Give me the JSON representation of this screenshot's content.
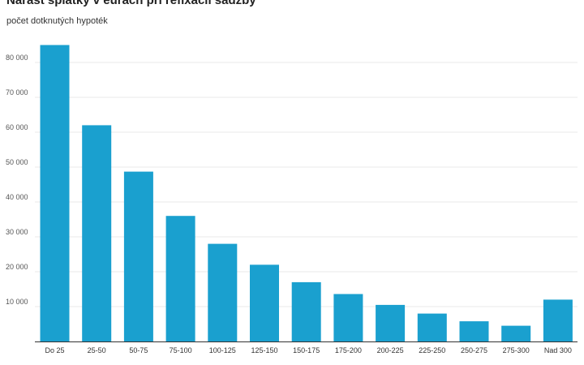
{
  "chart_data": {
    "type": "bar",
    "title": "Nárast splátky v eurách pri refixácii sadzby",
    "subtitle": "počet dotknutých hypoték",
    "xlabel": "",
    "ylabel": "",
    "categories": [
      "Do 25",
      "25-50",
      "50-75",
      "75-100",
      "100-125",
      "125-150",
      "150-175",
      "175-200",
      "200-225",
      "225-250",
      "250-275",
      "275-300",
      "Nad 300"
    ],
    "values": [
      85000,
      62000,
      48700,
      36000,
      28000,
      22000,
      17000,
      13600,
      10500,
      8000,
      5800,
      4500,
      12000
    ],
    "ylim": [
      0,
      85000
    ],
    "yticks": [
      10000,
      20000,
      30000,
      40000,
      50000,
      60000,
      70000,
      80000
    ],
    "ytick_labels": [
      "10 000",
      "20 000",
      "30 000",
      "40 000",
      "50 000",
      "60 000",
      "70 000",
      "80 000"
    ],
    "grid": true,
    "legend": "none",
    "colors": {
      "bar": "#1aa0cf",
      "grid": "#e8e8e8",
      "axis": "#333333"
    }
  }
}
